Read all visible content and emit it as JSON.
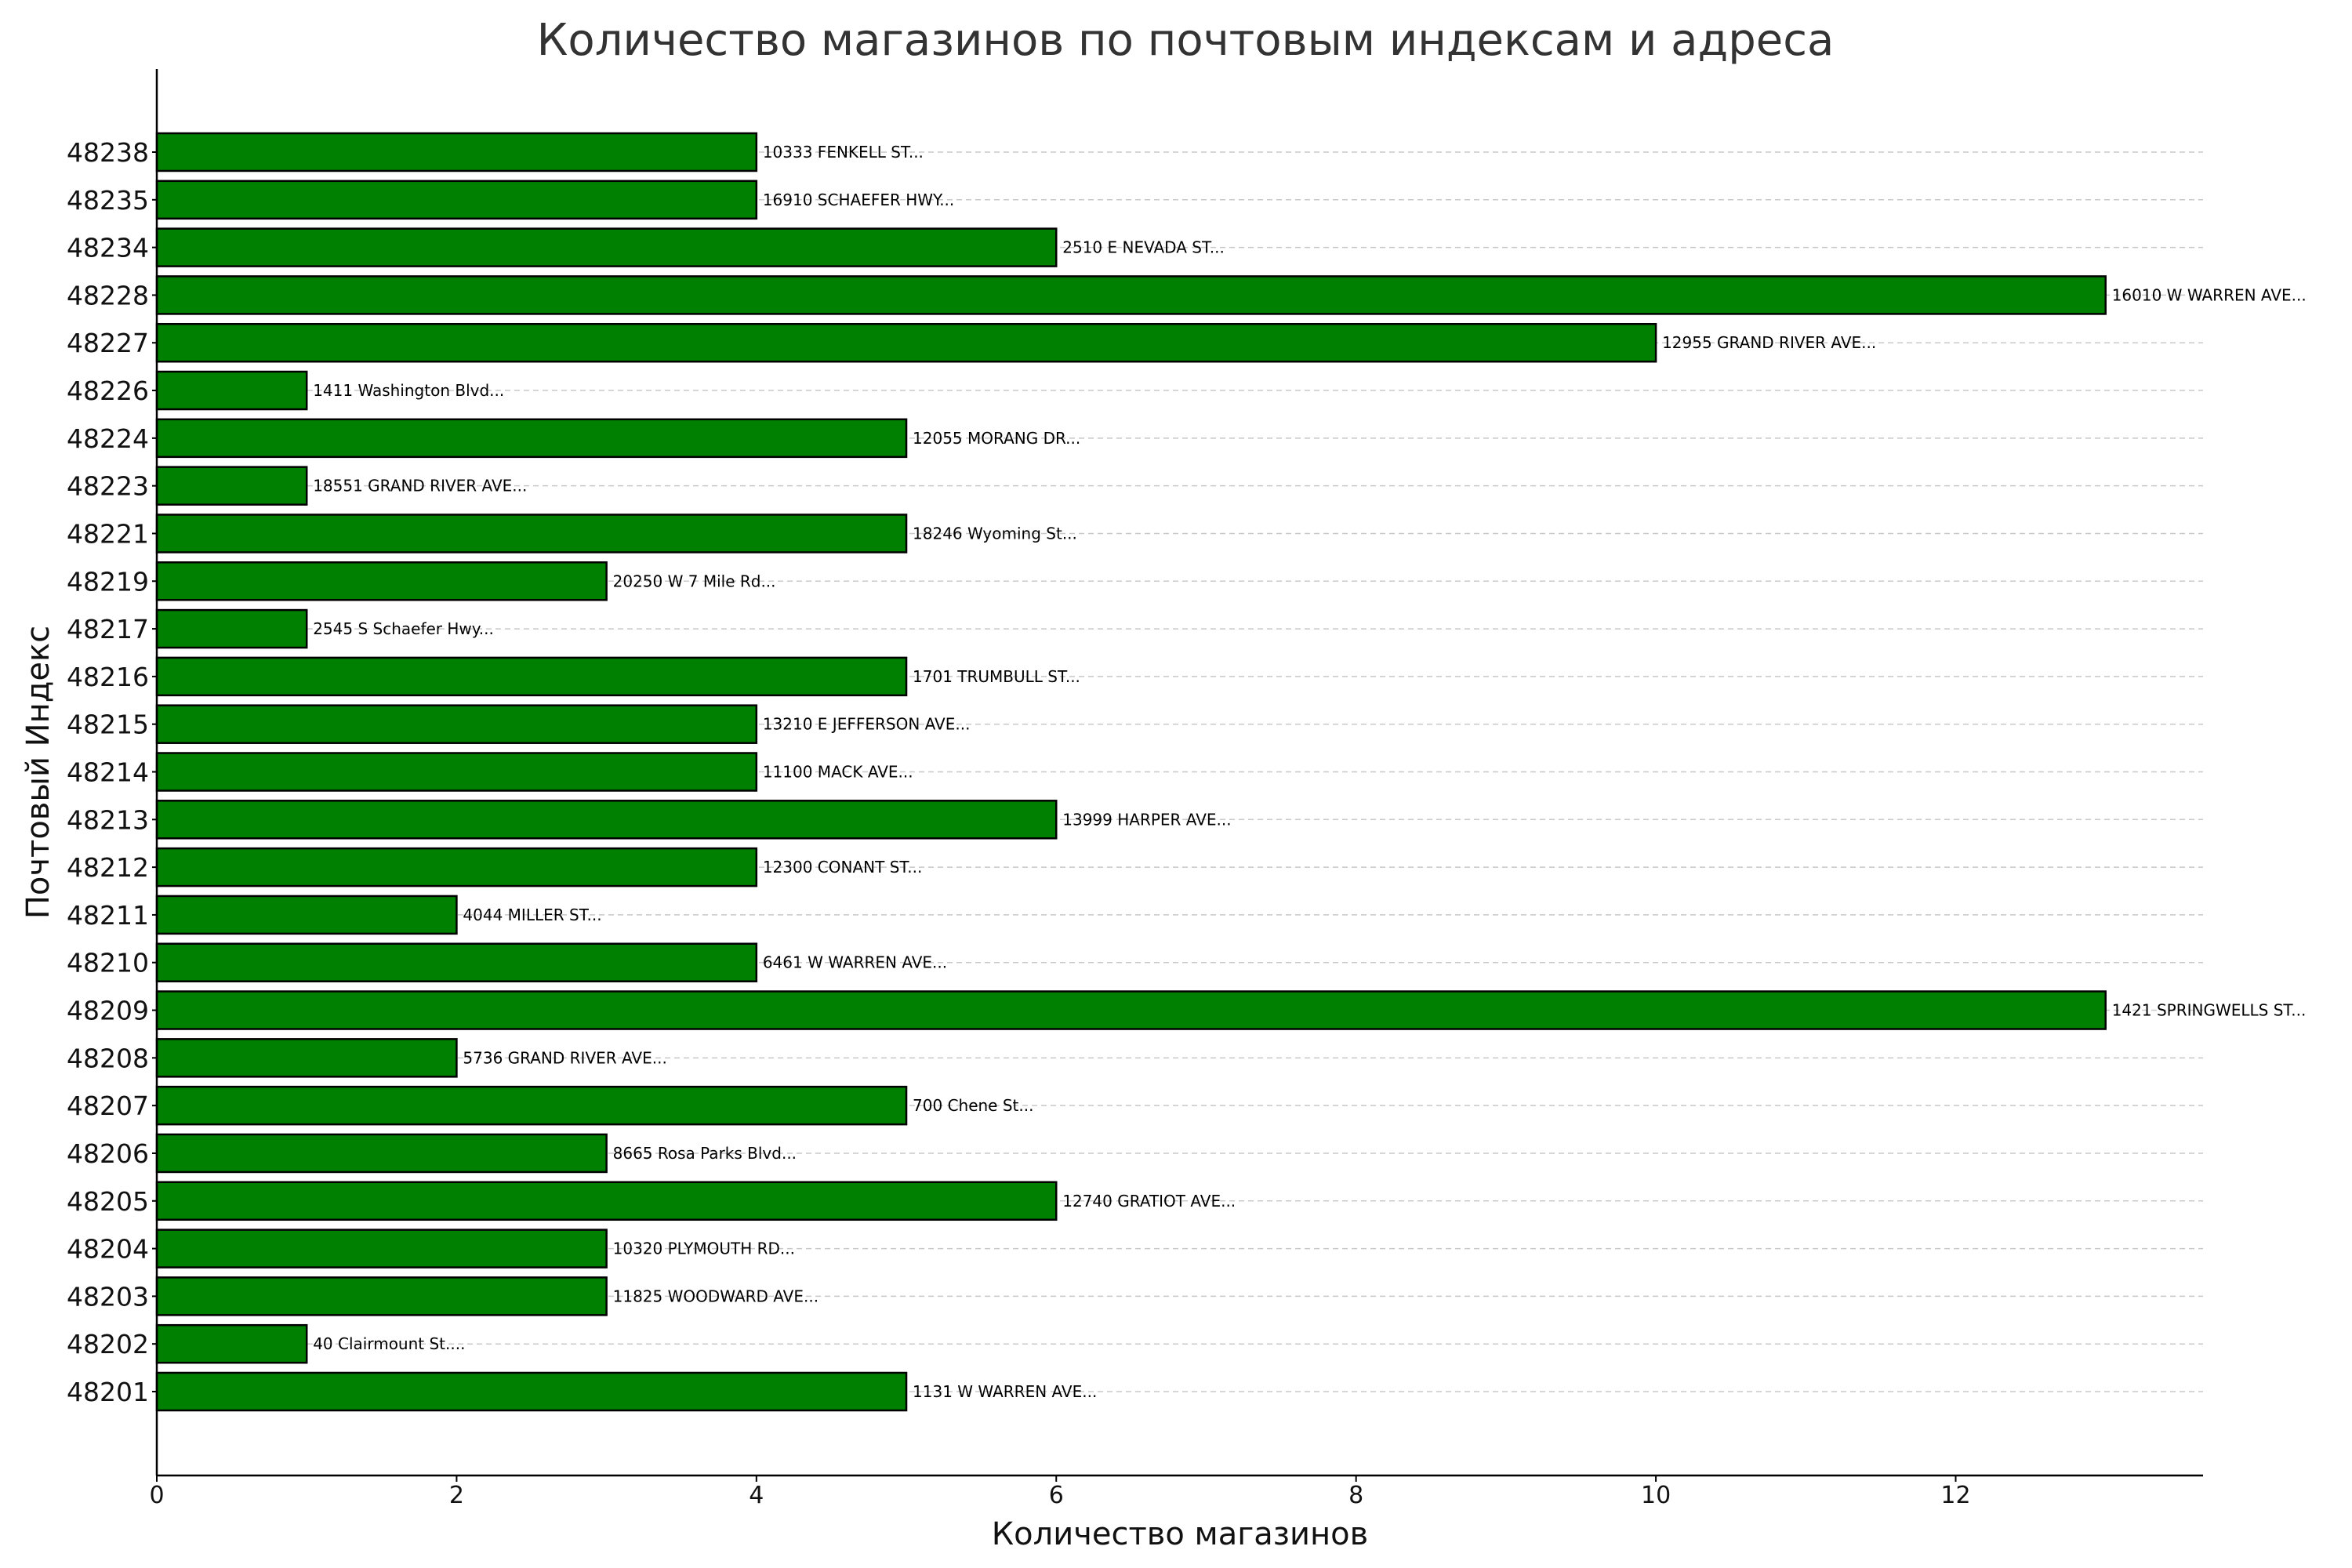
{
  "chart_data": {
    "type": "bar",
    "orientation": "horizontal",
    "title": "Количество магазинов по почтовым индексам и адреса",
    "xlabel": "Количество магазинов",
    "ylabel": "Почтовый Индекс",
    "xlim": [
      0,
      13.65
    ],
    "xticks": [
      "0",
      "2",
      "4",
      "6",
      "8",
      "10",
      "12"
    ],
    "grid": "horizontal dashed",
    "bar_color": "#008000",
    "categories": [
      "48201",
      "48202",
      "48203",
      "48204",
      "48205",
      "48206",
      "48207",
      "48208",
      "48209",
      "48210",
      "48211",
      "48212",
      "48213",
      "48214",
      "48215",
      "48216",
      "48217",
      "48219",
      "48221",
      "48223",
      "48224",
      "48226",
      "48227",
      "48228",
      "48234",
      "48235",
      "48238"
    ],
    "values": [
      5,
      1,
      3,
      3,
      6,
      3,
      5,
      2,
      13,
      4,
      2,
      4,
      6,
      4,
      4,
      5,
      1,
      3,
      5,
      1,
      5,
      1,
      10,
      13,
      6,
      4,
      4
    ],
    "labels": [
      "1131 W WARREN AVE...",
      "40 Clairmount St....",
      "11825 WOODWARD AVE...",
      "10320 PLYMOUTH RD...",
      "12740 GRATIOT AVE...",
      "8665 Rosa Parks Blvd...",
      "700 Chene St...",
      "5736 GRAND RIVER AVE...",
      "1421 SPRINGWELLS ST...",
      "6461 W WARREN AVE...",
      "4044 MILLER ST...",
      "12300 CONANT ST...",
      "13999 HARPER AVE...",
      "11100 MACK AVE...",
      "13210 E JEFFERSON AVE...",
      "1701 TRUMBULL ST...",
      "2545 S Schaefer Hwy...",
      "20250 W 7 Mile Rd...",
      "18246 Wyoming St...",
      "18551 GRAND RIVER AVE...",
      "12055 MORANG DR...",
      "1411 Washington Blvd...",
      "12955 GRAND RIVER AVE...",
      "16010 W WARREN AVE...",
      "2510 E NEVADA ST...",
      "16910 SCHAEFER HWY...",
      "10333 FENKELL ST..."
    ]
  }
}
